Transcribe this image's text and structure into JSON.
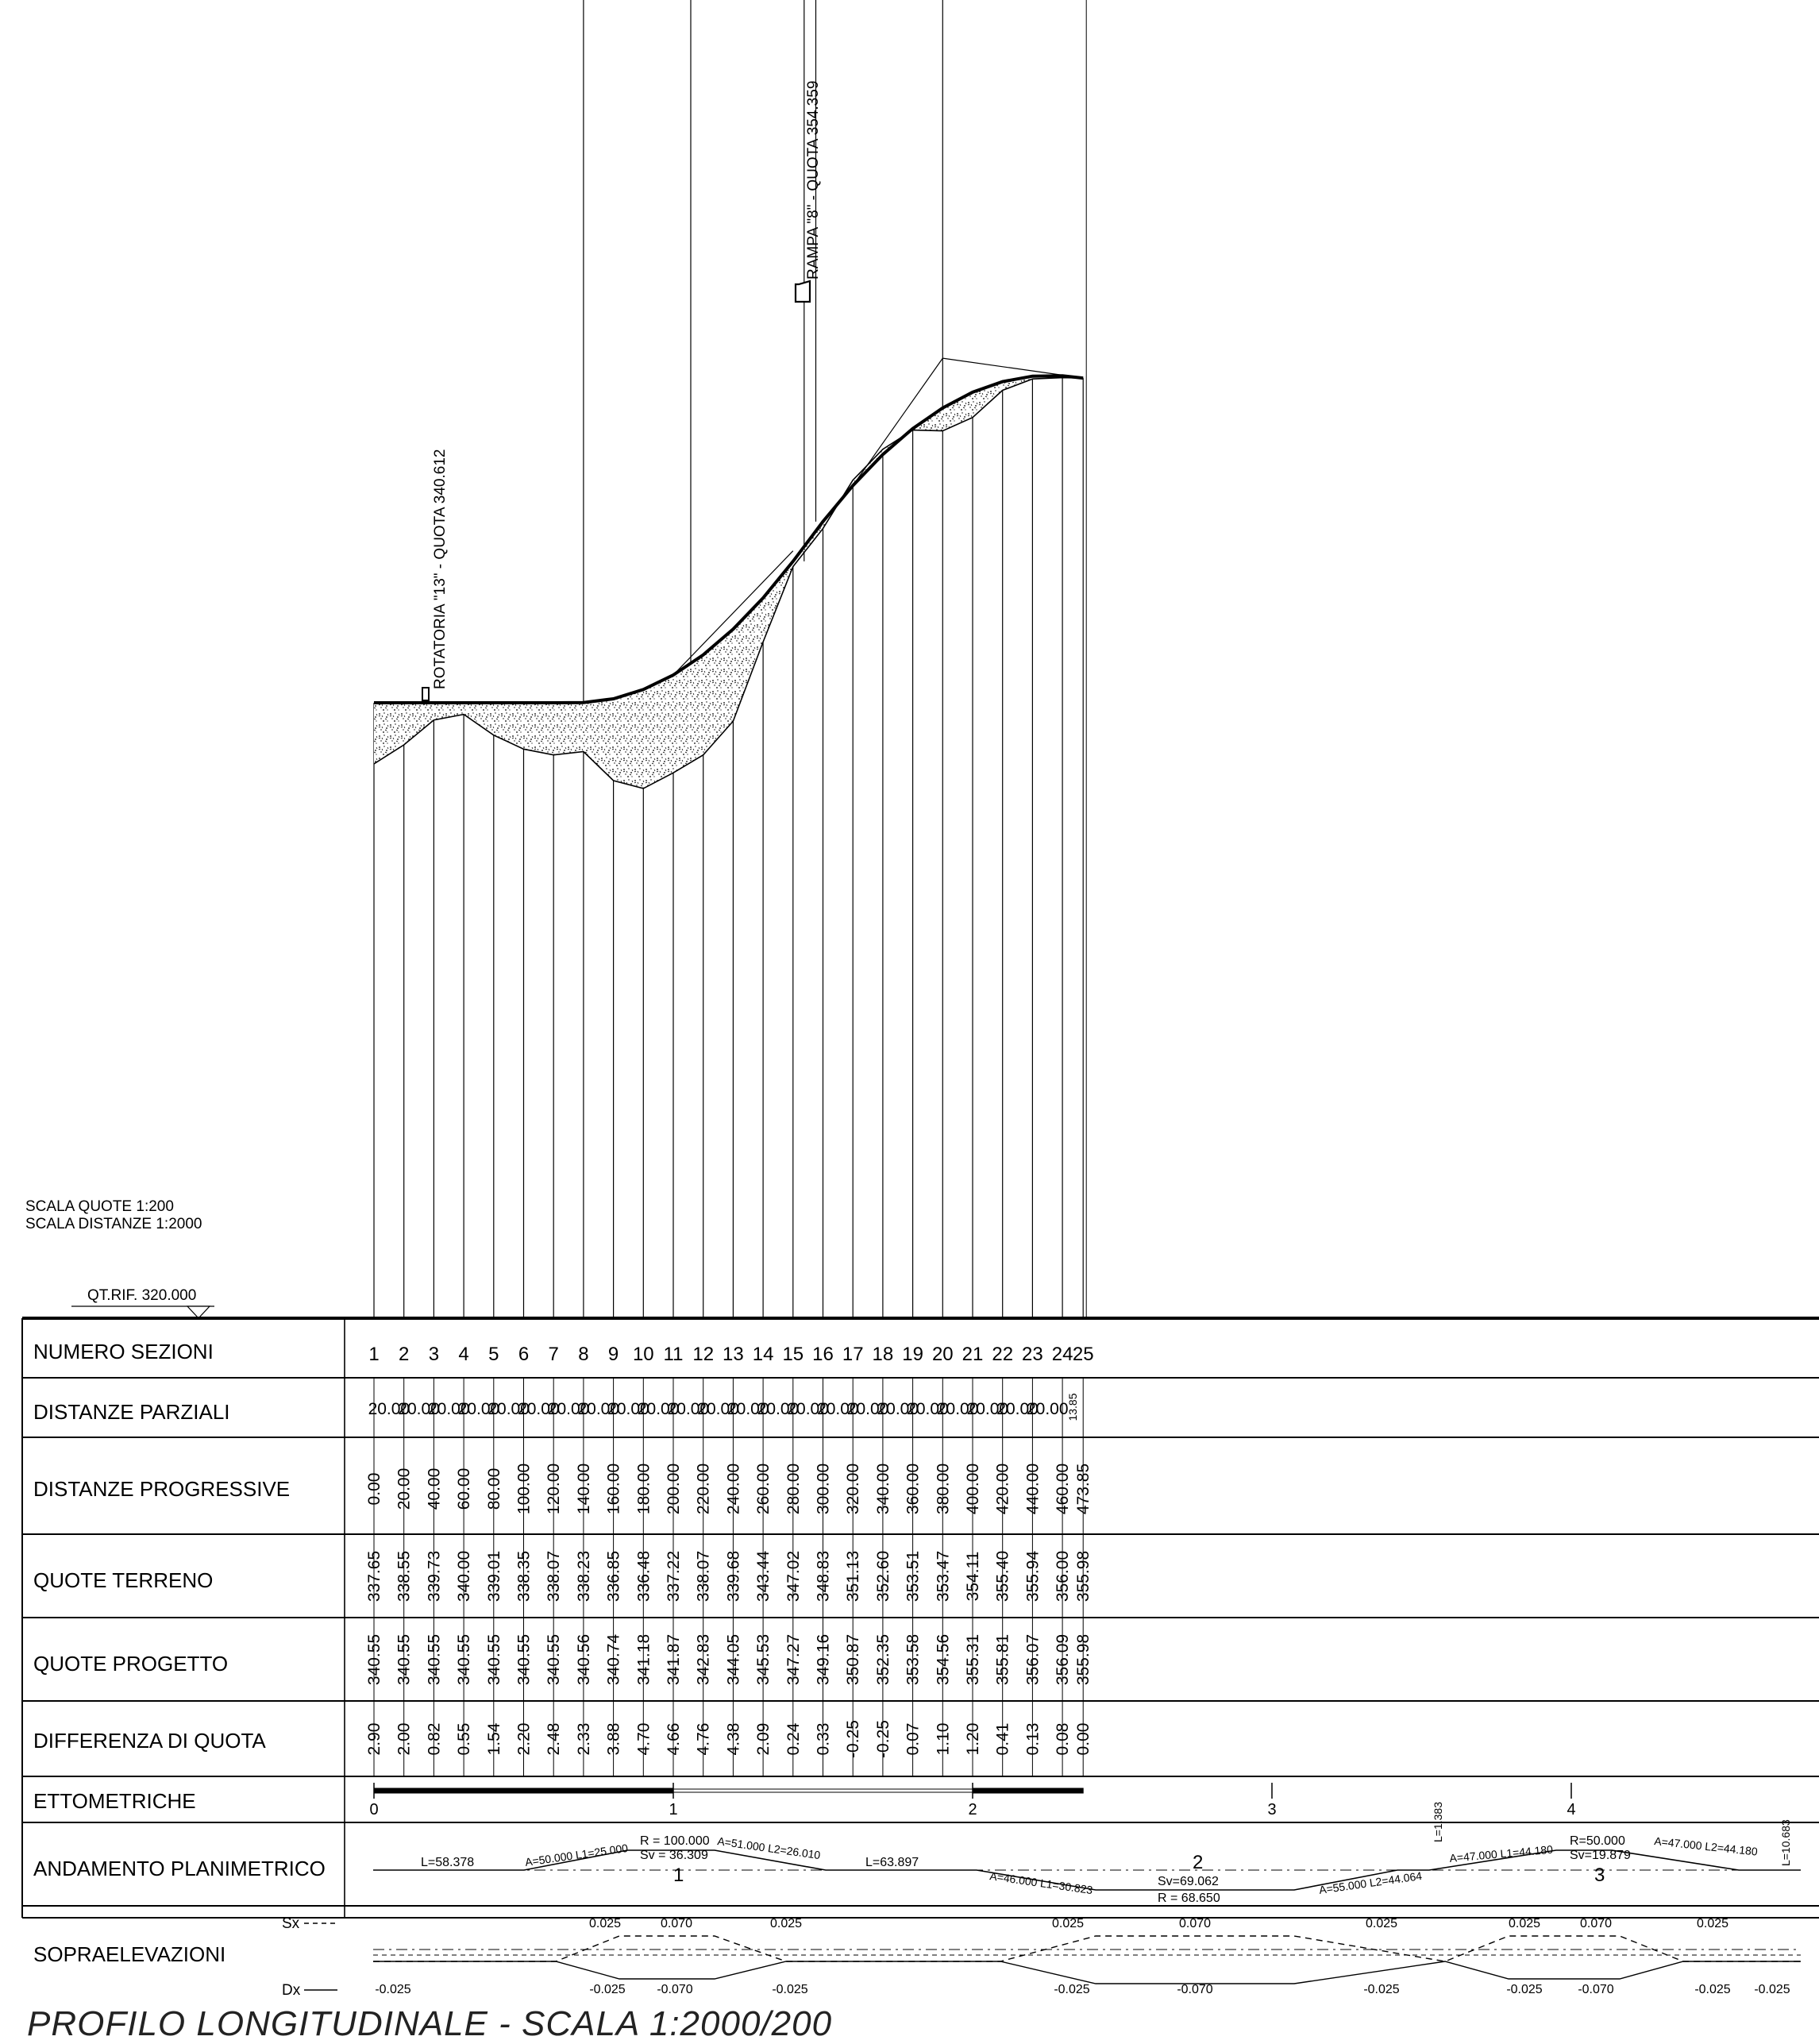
{
  "notes": {
    "scale_heights": "SCALA QUOTE 1:200",
    "scale_distances": "SCALA DISTANZE 1:2000",
    "reference_level": "QT.RIF. 320.000",
    "roundabout_label": "ROTATORIA \"13\" - QUOTA 340.612",
    "ramp_label": "RAMPA \"8\" - QUOTA 354.359"
  },
  "title": "PROFILO LONGITUDINALE - SCALA 1:2000/200",
  "row_labels": {
    "sections": "NUMERO SEZIONI",
    "partial": "DISTANZE PARZIALI",
    "progressive": "DISTANZE PROGRESSIVE",
    "ground": "QUOTE TERRENO",
    "design": "QUOTE PROGETTO",
    "difference": "DIFFERENZA DI QUOTA",
    "hectometric": "ETTOMETRICHE",
    "plan": "ANDAMENTO PLANIMETRICO",
    "superelevation": "SOPRAELEVAZIONI",
    "sx": "Sx",
    "dx": "Dx"
  },
  "chart_data": {
    "type": "line",
    "section_numbers": [
      "1",
      "2",
      "3",
      "4",
      "5",
      "6",
      "7",
      "8",
      "9",
      "10",
      "11",
      "12",
      "13",
      "14",
      "15",
      "16",
      "17",
      "18",
      "19",
      "20",
      "21",
      "22",
      "23",
      "24",
      "25"
    ],
    "partial_distances": [
      "20.00",
      "20.00",
      "20.00",
      "20.00",
      "20.00",
      "20.00",
      "20.00",
      "20.00",
      "20.00",
      "20.00",
      "20.00",
      "20.00",
      "20.00",
      "20.00",
      "20.00",
      "20.00",
      "20.00",
      "20.00",
      "20.00",
      "20.00",
      "20.00",
      "20.00",
      "20.00",
      "13.85"
    ],
    "progressive_distances": [
      "0.00",
      "20.00",
      "40.00",
      "60.00",
      "80.00",
      "100.00",
      "120.00",
      "140.00",
      "160.00",
      "180.00",
      "200.00",
      "220.00",
      "240.00",
      "260.00",
      "280.00",
      "300.00",
      "320.00",
      "340.00",
      "360.00",
      "380.00",
      "400.00",
      "420.00",
      "440.00",
      "460.00",
      "473.85"
    ],
    "ground_elevations": [
      "337.65",
      "338.55",
      "339.73",
      "340.00",
      "339.01",
      "338.35",
      "338.07",
      "338.23",
      "336.85",
      "336.48",
      "337.22",
      "338.07",
      "339.68",
      "343.44",
      "347.02",
      "348.83",
      "351.13",
      "352.60",
      "353.51",
      "353.47",
      "354.11",
      "355.40",
      "355.94",
      "356.00",
      "355.98"
    ],
    "design_elevations": [
      "340.55",
      "340.55",
      "340.55",
      "340.55",
      "340.55",
      "340.55",
      "340.55",
      "340.56",
      "340.74",
      "341.18",
      "341.87",
      "342.83",
      "344.05",
      "345.53",
      "347.27",
      "349.16",
      "350.87",
      "352.35",
      "353.58",
      "354.56",
      "355.31",
      "355.81",
      "356.07",
      "356.09",
      "355.98"
    ],
    "elevation_differences": [
      "2.90",
      "2.00",
      "0.82",
      "0.55",
      "1.54",
      "2.20",
      "2.48",
      "2.33",
      "3.88",
      "4.70",
      "4.66",
      "4.76",
      "4.38",
      "2.09",
      "0.24",
      "0.33",
      "-0.25",
      "-0.25",
      "0.07",
      "1.10",
      "1.20",
      "0.41",
      "0.13",
      "0.08",
      "0.00"
    ],
    "hectometric_marks": [
      "0",
      "1",
      "2",
      "3",
      "4"
    ],
    "plan_labels": {
      "straight1": "L=58.378",
      "clothoid1a": "A=50.000  L1=25.000",
      "curve1": "R = 100.000",
      "curve1_sv": "Sv = 36.309",
      "clothoid1b": "A=51.000  L2=26.010",
      "curve1_no": "1",
      "straight2": "L=63.897",
      "clothoid2a": "A=46.000  L1=30.823",
      "curve2_no": "2",
      "curve2_sv": "Sv=69.062",
      "curve2_r": "R = 68.650",
      "clothoid2b": "A=55.000  L2=44.064",
      "straight3": "L=1.383",
      "clothoid3a": "A=47.000  L1=44.180",
      "curve3_r": "R=50.000",
      "curve3_sv": "Sv=19.879",
      "curve3_no": "3",
      "clothoid3b": "A=47.000  L2=44.180",
      "straight4": "L=10.683"
    },
    "superelevation_labels": {
      "top": [
        "0.025",
        "0.070",
        "0.025",
        "0.025",
        "0.070",
        "0.025",
        "0.025",
        "0.070",
        "0.025"
      ],
      "bottom": [
        "-0.025",
        "-0.025",
        "-0.070",
        "-0.025",
        "-0.025",
        "-0.070",
        "-0.025",
        "-0.025",
        "-0.070",
        "-0.025",
        "-0.025"
      ]
    }
  }
}
